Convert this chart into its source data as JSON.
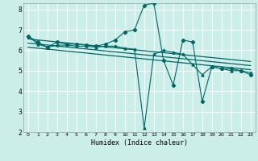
{
  "xlabel": "Humidex (Indice chaleur)",
  "bg_color": "#cceee8",
  "grid_color": "#ffffff",
  "line_color": "#006666",
  "xlim": [
    -0.5,
    23.5
  ],
  "ylim": [
    2,
    8.3
  ],
  "xticks": [
    0,
    1,
    2,
    3,
    4,
    5,
    6,
    7,
    8,
    9,
    10,
    11,
    12,
    13,
    14,
    15,
    16,
    17,
    18,
    19,
    20,
    21,
    22,
    23
  ],
  "yticks": [
    2,
    3,
    4,
    5,
    6,
    7,
    8
  ],
  "series1_x": [
    0,
    1,
    2,
    3,
    4,
    5,
    6,
    7,
    8,
    9,
    10,
    11,
    12,
    13,
    14,
    15,
    16,
    17,
    18,
    19,
    20,
    21,
    22,
    23
  ],
  "series1_y": [
    6.7,
    6.4,
    6.15,
    6.4,
    6.3,
    6.3,
    6.25,
    6.2,
    6.3,
    6.5,
    6.9,
    7.0,
    8.2,
    8.3,
    5.5,
    4.3,
    6.5,
    6.4,
    3.5,
    5.2,
    5.1,
    5.1,
    5.0,
    4.8
  ],
  "series2_x": [
    0,
    1,
    2,
    3,
    4,
    5,
    6,
    7,
    8,
    9,
    10,
    11,
    12,
    13,
    14,
    15,
    16,
    17,
    18,
    19,
    20,
    21,
    22,
    23
  ],
  "series2_y": [
    6.7,
    6.3,
    6.15,
    6.25,
    6.25,
    6.2,
    6.2,
    6.15,
    6.2,
    6.2,
    6.1,
    6.05,
    2.2,
    5.8,
    6.0,
    5.9,
    5.8,
    5.3,
    4.8,
    5.2,
    5.1,
    5.0,
    5.0,
    4.9
  ],
  "trend1_x": [
    0,
    23
  ],
  "trend1_y": [
    6.55,
    5.45
  ],
  "trend2_x": [
    0,
    23
  ],
  "trend2_y": [
    6.35,
    5.25
  ],
  "trend3_x": [
    0,
    23
  ],
  "trend3_y": [
    6.15,
    5.05
  ]
}
